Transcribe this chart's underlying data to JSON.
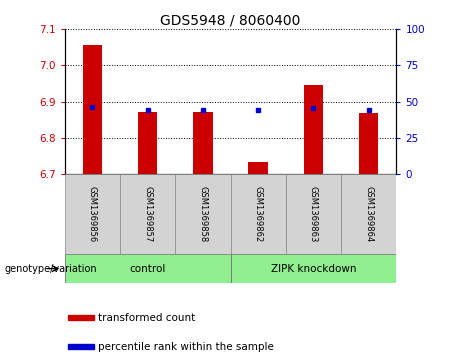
{
  "title": "GDS5948 / 8060400",
  "samples": [
    "GSM1369856",
    "GSM1369857",
    "GSM1369858",
    "GSM1369862",
    "GSM1369863",
    "GSM1369864"
  ],
  "groups": [
    {
      "label": "control",
      "indices": [
        0,
        1,
        2
      ],
      "color": "#90EE90"
    },
    {
      "label": "ZIPK knockdown",
      "indices": [
        3,
        4,
        5
      ],
      "color": "#90EE90"
    }
  ],
  "red_values": [
    7.055,
    6.872,
    6.872,
    6.735,
    6.945,
    6.87
  ],
  "blue_values": [
    6.886,
    6.878,
    6.878,
    6.878,
    6.882,
    6.878
  ],
  "y_min": 6.7,
  "y_max": 7.1,
  "y_ticks_left": [
    6.7,
    6.8,
    6.9,
    7.0,
    7.1
  ],
  "y_ticks_right": [
    0,
    25,
    50,
    75,
    100
  ],
  "bar_bottom": 6.7,
  "bar_color": "#cc0000",
  "dot_color": "#0000cc",
  "legend_items": [
    {
      "label": "transformed count",
      "color": "#cc0000"
    },
    {
      "label": "percentile rank within the sample",
      "color": "#0000cc"
    }
  ],
  "group_label_prefix": "genotype/variation",
  "bg_color": "#ffffff",
  "plot_bg": "#ffffff",
  "tick_label_color_left": "#cc0000",
  "tick_label_color_right": "#0000cc",
  "bar_width": 0.35
}
